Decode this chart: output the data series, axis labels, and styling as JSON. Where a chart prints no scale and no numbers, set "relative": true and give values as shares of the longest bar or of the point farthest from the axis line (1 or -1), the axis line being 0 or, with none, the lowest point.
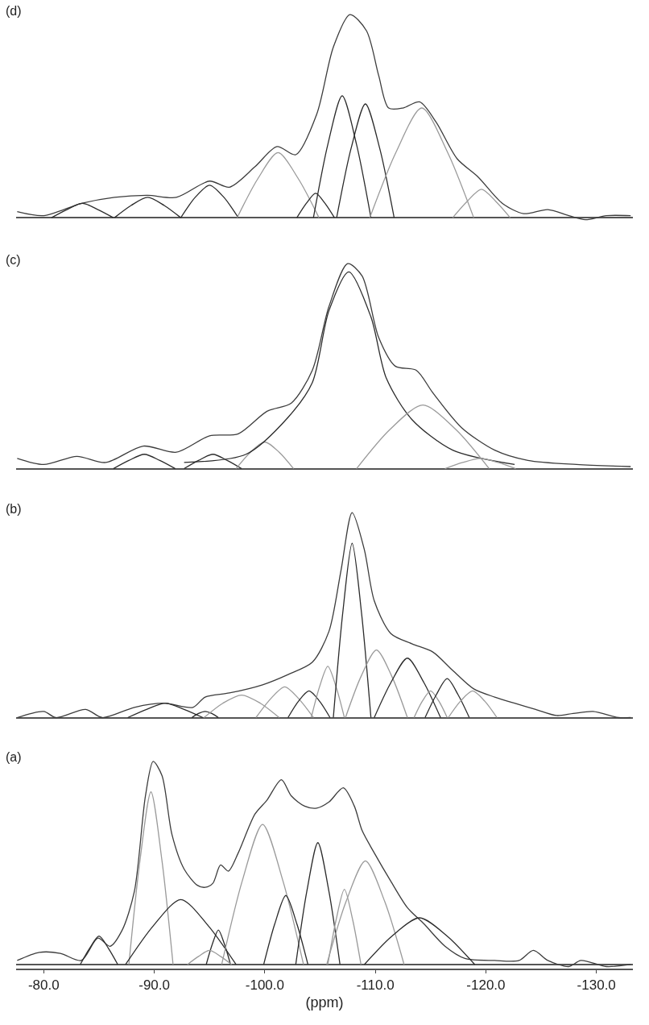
{
  "chart_data": [
    {
      "type": "line",
      "title": "(d)",
      "relative": true,
      "xlim": [
        -77.5,
        -133.3
      ],
      "series": [
        {
          "color": "#3c3c3c",
          "x": [
            -77.6,
            -80.0,
            -83.4,
            -86.4,
            -89.4,
            -92.0,
            -95.0,
            -96.8,
            -99.1,
            -101.1,
            -102.8,
            -104.7,
            -106.2,
            -107.7,
            -109.2,
            -110.3,
            -111.2,
            -112.5,
            -114.0,
            -115.5,
            -117.4,
            -119.3,
            -121.5,
            -123.4,
            -125.6,
            -127.5,
            -129.0,
            -130.9,
            -133.1
          ],
          "values": [
            0.03,
            0.01,
            0.07,
            0.1,
            0.11,
            0.1,
            0.18,
            0.15,
            0.25,
            0.35,
            0.31,
            0.51,
            0.84,
            1.0,
            0.92,
            0.7,
            0.54,
            0.54,
            0.57,
            0.47,
            0.29,
            0.2,
            0.07,
            0.02,
            0.04,
            0.01,
            -0.01,
            0.01,
            0.01
          ]
        },
        {
          "color": "#2b2b2b",
          "x": [
            -80.7,
            -82.1,
            -83.5,
            -84.9,
            -86.3
          ],
          "values": [
            0,
            0.04,
            0.07,
            0.04,
            0
          ]
        },
        {
          "color": "#2b2b2b",
          "x": [
            -86.4,
            -87.9,
            -89.4,
            -90.9,
            -92.4
          ],
          "values": [
            0,
            0.06,
            0.1,
            0.06,
            0
          ]
        },
        {
          "color": "#2b2b2b",
          "x": [
            -92.4,
            -93.7,
            -95.0,
            -96.3,
            -97.6
          ],
          "values": [
            0,
            0.1,
            0.16,
            0.1,
            0
          ]
        },
        {
          "color": "#9a9a9a",
          "x": [
            -97.5,
            -99.35,
            -101.2,
            -103.05,
            -104.9
          ],
          "values": [
            0,
            0.19,
            0.32,
            0.19,
            0
          ]
        },
        {
          "color": "#2b2b2b",
          "x": [
            -102.9,
            -103.75,
            -104.6,
            -105.45,
            -106.3
          ],
          "values": [
            0,
            0.07,
            0.12,
            0.07,
            0
          ]
        },
        {
          "color": "#2b2b2b",
          "x": [
            -104.4,
            -105.7,
            -107.0,
            -108.3,
            -109.6
          ],
          "values": [
            0,
            0.36,
            0.6,
            0.36,
            0
          ]
        },
        {
          "color": "#2b2b2b",
          "x": [
            -106.5,
            -107.8,
            -109.1,
            -110.4,
            -111.7
          ],
          "values": [
            0,
            0.34,
            0.56,
            0.34,
            0
          ]
        },
        {
          "color": "#9a9a9a",
          "x": [
            -109.5,
            -111.85,
            -114.2,
            -116.55,
            -118.9
          ],
          "values": [
            0,
            0.32,
            0.54,
            0.32,
            0
          ]
        },
        {
          "color": "#9a9a9a",
          "x": [
            -117.0,
            -118.3,
            -119.6,
            -120.9,
            -122.2
          ],
          "values": [
            0,
            0.08,
            0.14,
            0.08,
            0
          ]
        }
      ]
    },
    {
      "type": "line",
      "title": "(c)",
      "relative": true,
      "xlim": [
        -77.5,
        -133.3
      ],
      "series": [
        {
          "color": "#3c3c3c",
          "x": [
            -77.6,
            -80.0,
            -83.0,
            -85.6,
            -89.0,
            -92.0,
            -95.0,
            -97.6,
            -100.2,
            -102.4,
            -104.3,
            -105.8,
            -107.5,
            -108.8,
            -110.3,
            -111.8,
            -113.7,
            -115.2,
            -117.8,
            -120.8,
            -123.8,
            -128.2,
            -133.1
          ],
          "values": [
            0.05,
            0.02,
            0.06,
            0.03,
            0.11,
            0.08,
            0.16,
            0.17,
            0.28,
            0.32,
            0.48,
            0.79,
            1.0,
            0.94,
            0.64,
            0.5,
            0.48,
            0.37,
            0.2,
            0.09,
            0.04,
            0.02,
            0.01
          ]
        },
        {
          "color": "#2b2b2b",
          "x": [
            -86.3,
            -87.7,
            -89.1,
            -90.5,
            -91.9
          ],
          "values": [
            0,
            0.04,
            0.07,
            0.04,
            0
          ]
        },
        {
          "color": "#2b2b2b",
          "x": [
            -92.7,
            -94.0,
            -95.3,
            -96.6,
            -97.9
          ],
          "values": [
            0,
            0.04,
            0.07,
            0.04,
            0
          ]
        },
        {
          "color": "#9a9a9a",
          "x": [
            -97.4,
            -98.7,
            -100.0,
            -101.3,
            -102.6
          ],
          "values": [
            0,
            0.08,
            0.13,
            0.08,
            0
          ]
        },
        {
          "color": "#2b2b2b",
          "x": [
            -92.7,
            -98.3,
            -102.1,
            -104.3,
            -105.8,
            -107.6,
            -109.6,
            -111.0,
            -113.3,
            -117.0,
            -122.6
          ],
          "values": [
            0.03,
            0.07,
            0.25,
            0.42,
            0.77,
            0.96,
            0.74,
            0.44,
            0.24,
            0.09,
            0.02
          ]
        },
        {
          "color": "#9a9a9a",
          "x": [
            -108.3,
            -111.3,
            -114.3,
            -117.3,
            -120.3
          ],
          "values": [
            0,
            0.19,
            0.31,
            0.19,
            0
          ]
        },
        {
          "color": "#9a9a9a",
          "x": [
            -116.3,
            -117.9,
            -119.5,
            -121.1,
            -122.7
          ],
          "values": [
            0,
            0.03,
            0.05,
            0.03,
            0
          ]
        }
      ]
    },
    {
      "type": "line",
      "title": "(b)",
      "relative": true,
      "xlim": [
        -77.5,
        -133.3
      ],
      "series": [
        {
          "color": "#3c3c3c",
          "x": [
            -77.6,
            -80.0,
            -81.1,
            -83.8,
            -85.3,
            -88.2,
            -90.9,
            -93.5,
            -94.6,
            -96.8,
            -99.8,
            -102.1,
            -104.3,
            -105.8,
            -106.9,
            -107.9,
            -109.0,
            -109.9,
            -111.4,
            -113.3,
            -115.2,
            -117.0,
            -118.9,
            -120.8,
            -122.6,
            -124.5,
            -126.4,
            -127.9,
            -129.7,
            -132.0,
            -133.1
          ],
          "values": [
            0,
            0.03,
            0,
            0.04,
            0,
            0.05,
            0.07,
            0.05,
            0.1,
            0.12,
            0.16,
            0.21,
            0.27,
            0.42,
            0.72,
            1.0,
            0.82,
            0.57,
            0.41,
            0.36,
            0.32,
            0.23,
            0.14,
            0.1,
            0.07,
            0.04,
            0.01,
            0.02,
            0.03,
            0,
            0
          ]
        },
        {
          "color": "#2b2b2b",
          "x": [
            -87.6,
            -89.3,
            -91.0,
            -92.7,
            -94.4
          ],
          "values": [
            0,
            0.04,
            0.07,
            0.04,
            0
          ]
        },
        {
          "color": "#2b2b2b",
          "x": [
            -93.4,
            -94.0,
            -94.6,
            -95.2,
            -95.8
          ],
          "values": [
            0,
            0.02,
            0.03,
            0.02,
            0
          ]
        },
        {
          "color": "#9a9a9a",
          "x": [
            -94.5,
            -96.2,
            -97.9,
            -99.6,
            -101.3
          ],
          "values": [
            0,
            0.07,
            0.11,
            0.07,
            0
          ]
        },
        {
          "color": "#9a9a9a",
          "x": [
            -99.2,
            -100.5,
            -101.8,
            -103.1,
            -104.4
          ],
          "values": [
            0,
            0.09,
            0.15,
            0.09,
            0
          ]
        },
        {
          "color": "#2b2b2b",
          "x": [
            -102.1,
            -103.05,
            -104.0,
            -104.95,
            -105.9
          ],
          "values": [
            0,
            0.08,
            0.13,
            0.08,
            0
          ]
        },
        {
          "color": "#9a9a9a",
          "x": [
            -104.2,
            -104.95,
            -105.7,
            -106.45,
            -107.2
          ],
          "values": [
            0,
            0.15,
            0.25,
            0.15,
            0
          ]
        },
        {
          "color": "#2b2b2b",
          "x": [
            -106.2,
            -107.05,
            -107.9,
            -108.75,
            -109.6
          ],
          "values": [
            0,
            0.51,
            0.85,
            0.51,
            0
          ]
        },
        {
          "color": "#9a9a9a",
          "x": [
            -107.3,
            -108.7,
            -110.1,
            -111.5,
            -112.9
          ],
          "values": [
            0,
            0.2,
            0.33,
            0.2,
            0
          ]
        },
        {
          "color": "#2b2b2b",
          "x": [
            -109.9,
            -111.4,
            -112.9,
            -114.4,
            -115.9
          ],
          "values": [
            0,
            0.17,
            0.29,
            0.17,
            0
          ]
        },
        {
          "color": "#9a9a9a",
          "x": [
            -113.5,
            -114.25,
            -115.0,
            -115.75,
            -116.5
          ],
          "values": [
            0,
            0.08,
            0.13,
            0.08,
            0
          ]
        },
        {
          "color": "#2b2b2b",
          "x": [
            -114.5,
            -115.5,
            -116.5,
            -117.5,
            -118.5
          ],
          "values": [
            0,
            0.11,
            0.19,
            0.11,
            0
          ]
        },
        {
          "color": "#9a9a9a",
          "x": [
            -116.6,
            -117.7,
            -118.8,
            -119.9,
            -121.0
          ],
          "values": [
            0,
            0.08,
            0.13,
            0.08,
            0
          ]
        }
      ]
    },
    {
      "type": "line",
      "title": "(a)",
      "relative": true,
      "xlabel": "(ppm)",
      "xlim": [
        -77.5,
        -133.3
      ],
      "xticks": [
        {
          "value": -80,
          "label": "-80.0"
        },
        {
          "value": -90,
          "label": "-90.0"
        },
        {
          "value": -100,
          "label": "-100.0"
        },
        {
          "value": -110,
          "label": "-110.0"
        },
        {
          "value": -120,
          "label": "-120.0"
        },
        {
          "value": -130,
          "label": "-130.0"
        }
      ],
      "series": [
        {
          "color": "#3c3c3c",
          "x": [
            -77.6,
            -79.6,
            -81.5,
            -83.4,
            -84.9,
            -86.0,
            -87.1,
            -88.2,
            -89.2,
            -89.9,
            -90.7,
            -91.6,
            -92.7,
            -93.9,
            -94.6,
            -95.3,
            -96.0,
            -96.7,
            -97.6,
            -99.1,
            -100.2,
            -101.5,
            -102.4,
            -103.6,
            -104.7,
            -105.8,
            -107.1,
            -108.1,
            -108.8,
            -109.9,
            -111.4,
            -112.9,
            -114.4,
            -116.3,
            -118.1,
            -120.8,
            -123.0,
            -124.3,
            -125.6,
            -127.5,
            -128.6,
            -130.9,
            -133.1
          ],
          "values": [
            0.02,
            0.06,
            0.055,
            0.02,
            0.13,
            0.09,
            0.17,
            0.36,
            0.83,
            1.0,
            0.93,
            0.64,
            0.47,
            0.39,
            0.38,
            0.4,
            0.49,
            0.46,
            0.55,
            0.74,
            0.81,
            0.91,
            0.83,
            0.78,
            0.77,
            0.8,
            0.87,
            0.78,
            0.66,
            0.55,
            0.41,
            0.28,
            0.2,
            0.09,
            0.03,
            0.02,
            0.02,
            0.07,
            0.02,
            -0.01,
            0.02,
            -0.01,
            0
          ]
        },
        {
          "color": "#2b2b2b",
          "x": [
            -83.3,
            -84.15,
            -85.0,
            -85.85,
            -86.7
          ],
          "values": [
            0,
            0.08,
            0.14,
            0.08,
            0
          ]
        },
        {
          "color": "#9a9a9a",
          "x": [
            -87.7,
            -88.7,
            -89.7,
            -90.7,
            -91.7
          ],
          "values": [
            0,
            0.51,
            0.85,
            0.51,
            0
          ]
        },
        {
          "color": "#2b2b2b",
          "x": [
            -87.4,
            -89.9,
            -92.4,
            -94.9,
            -97.4
          ],
          "values": [
            0,
            0.19,
            0.32,
            0.19,
            0
          ]
        },
        {
          "color": "#2b2b2b",
          "x": [
            -94.7,
            -95.25,
            -95.8,
            -96.35,
            -96.9
          ],
          "values": [
            0,
            0.1,
            0.17,
            0.1,
            0
          ]
        },
        {
          "color": "#9a9a9a",
          "x": [
            -93.0,
            -94.0,
            -95.0,
            -96.0,
            -97.0
          ],
          "values": [
            0,
            0.04,
            0.07,
            0.04,
            0
          ]
        },
        {
          "color": "#9a9a9a",
          "x": [
            -96.1,
            -97.95,
            -99.8,
            -101.65,
            -103.5
          ],
          "values": [
            0,
            0.41,
            0.69,
            0.41,
            0
          ]
        },
        {
          "color": "#2b2b2b",
          "x": [
            -99.9,
            -100.9,
            -101.9,
            -102.9,
            -103.9
          ],
          "values": [
            0,
            0.2,
            0.34,
            0.2,
            0
          ]
        },
        {
          "color": "#2b2b2b",
          "x": [
            -102.8,
            -103.8,
            -104.8,
            -105.8,
            -106.8
          ],
          "values": [
            0,
            0.36,
            0.6,
            0.36,
            0
          ]
        },
        {
          "color": "#9a9a9a",
          "x": [
            -105.7,
            -106.45,
            -107.2,
            -107.95,
            -108.7
          ],
          "values": [
            0,
            0.22,
            0.37,
            0.22,
            0
          ]
        },
        {
          "color": "#9a9a9a",
          "x": [
            -105.6,
            -107.35,
            -109.1,
            -110.85,
            -112.6
          ],
          "values": [
            0,
            0.31,
            0.51,
            0.31,
            0
          ]
        },
        {
          "color": "#2b2b2b",
          "x": [
            -109.0,
            -111.5,
            -114.0,
            -116.5,
            -119.0
          ],
          "values": [
            0,
            0.14,
            0.23,
            0.14,
            0
          ]
        }
      ]
    }
  ]
}
